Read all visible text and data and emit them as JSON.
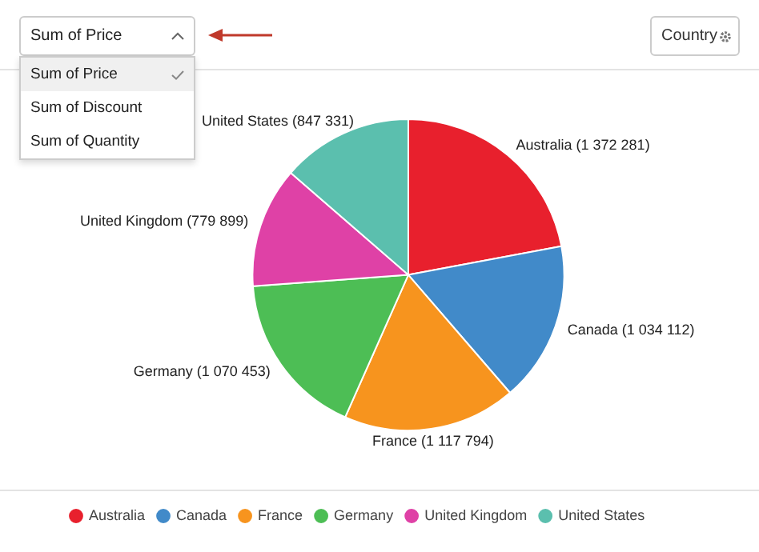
{
  "chart_data": {
    "type": "pie",
    "categories": [
      "Australia",
      "Canada",
      "France",
      "Germany",
      "United Kingdom",
      "United States"
    ],
    "values": [
      1372281,
      1034112,
      1117794,
      1070453,
      779899,
      847331
    ],
    "colors": [
      "#e8202d",
      "#418ac9",
      "#f7941e",
      "#4dbe55",
      "#df41a6",
      "#5bbfae"
    ],
    "value_labels": [
      "Australia (1 372 281)",
      "Canada (1 034 112)",
      "France (1 117 794)",
      "Germany (1 070 453)",
      "United Kingdom (779 899)",
      "United States (847 331)"
    ],
    "legend": "bottom",
    "annotations": [
      "Sum of Price",
      "Sum of Discount",
      "Sum of Quantity",
      "Country"
    ]
  }
}
